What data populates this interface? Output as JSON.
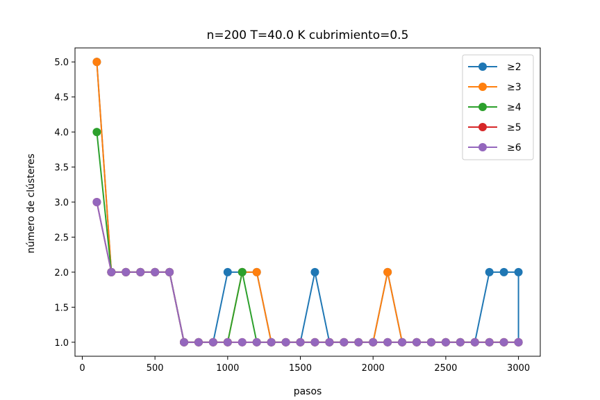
{
  "chart_data": {
    "type": "line",
    "title": "n=200 T=40.0 K cubrimiento=0.5",
    "xlabel": "pasos",
    "ylabel": "número de clústeres",
    "xlim": [
      -50,
      3150
    ],
    "ylim": [
      0.8,
      5.2
    ],
    "xticks": [
      0,
      500,
      1000,
      1500,
      2000,
      2500,
      3000
    ],
    "xtick_labels": [
      "0",
      "500",
      "1000",
      "1500",
      "2000",
      "2500",
      "3000"
    ],
    "yticks": [
      1.0,
      1.5,
      2.0,
      2.5,
      3.0,
      3.5,
      4.0,
      4.5,
      5.0
    ],
    "ytick_labels": [
      "1.0",
      "1.5",
      "2.0",
      "2.5",
      "3.0",
      "3.5",
      "4.0",
      "4.5",
      "5.0"
    ],
    "grid": false,
    "legend_position": "top-right",
    "x": [
      100,
      200,
      300,
      400,
      500,
      600,
      700,
      800,
      900,
      1000,
      1100,
      1200,
      1300,
      1400,
      1500,
      1600,
      1700,
      1800,
      1900,
      2000,
      2100,
      2200,
      2300,
      2400,
      2500,
      2600,
      2700,
      2800,
      2900,
      3000,
      3000
    ],
    "series": [
      {
        "name": "≥2",
        "color": "#1f77b4",
        "values": [
          5,
          2,
          2,
          2,
          2,
          2,
          1,
          1,
          1,
          2,
          2,
          2,
          1,
          1,
          1,
          2,
          1,
          1,
          1,
          1,
          2,
          1,
          1,
          1,
          1,
          1,
          1,
          2,
          2,
          2,
          1
        ]
      },
      {
        "name": "≥3",
        "color": "#ff7f0e",
        "values": [
          5,
          2,
          2,
          2,
          2,
          2,
          1,
          1,
          1,
          1,
          2,
          2,
          1,
          1,
          1,
          1,
          1,
          1,
          1,
          1,
          2,
          1,
          1,
          1,
          1,
          1,
          1,
          1,
          1,
          1,
          1
        ]
      },
      {
        "name": "≥4",
        "color": "#2ca02c",
        "values": [
          4,
          2,
          2,
          2,
          2,
          2,
          1,
          1,
          1,
          1,
          2,
          1,
          1,
          1,
          1,
          1,
          1,
          1,
          1,
          1,
          1,
          1,
          1,
          1,
          1,
          1,
          1,
          1,
          1,
          1,
          1
        ]
      },
      {
        "name": "≥5",
        "color": "#d62728",
        "values": [
          3,
          2,
          2,
          2,
          2,
          2,
          1,
          1,
          1,
          1,
          1,
          1,
          1,
          1,
          1,
          1,
          1,
          1,
          1,
          1,
          1,
          1,
          1,
          1,
          1,
          1,
          1,
          1,
          1,
          1,
          1
        ]
      },
      {
        "name": "≥6",
        "color": "#9467bd",
        "values": [
          3,
          2,
          2,
          2,
          2,
          2,
          1,
          1,
          1,
          1,
          1,
          1,
          1,
          1,
          1,
          1,
          1,
          1,
          1,
          1,
          1,
          1,
          1,
          1,
          1,
          1,
          1,
          1,
          1,
          1,
          1
        ]
      }
    ]
  }
}
